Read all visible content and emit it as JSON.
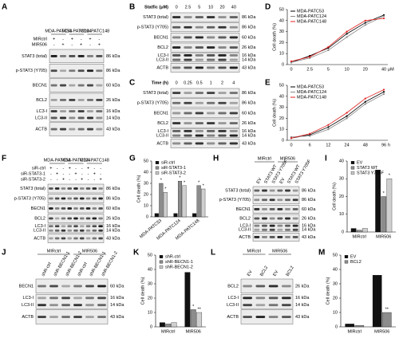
{
  "blots": [
    {
      "panel": "A",
      "groups": [
        "MDA-PATC53",
        "MDA-PATC124",
        "MDA-PATC148"
      ],
      "conditions": [
        {
          "label": "MIRctrl",
          "marks": [
            "+",
            "-",
            "+",
            "-",
            "+",
            "-"
          ]
        },
        {
          "label": "MIR506",
          "marks": [
            "-",
            "+",
            "-",
            "+",
            "-",
            "+"
          ]
        }
      ],
      "rows": [
        {
          "names": [
            "STAT3 (total)"
          ],
          "kda": [
            "86 kDa"
          ]
        },
        {
          "names": [
            "p-STAT3 (Y705)"
          ],
          "kda": [
            "86 kDa"
          ]
        },
        {
          "names": [
            "BECN1"
          ],
          "kda": [
            "60 kDa"
          ]
        },
        {
          "names": [
            "BCL2"
          ],
          "kda": [
            "26 kDa"
          ]
        },
        {
          "names": [
            "LC3-I",
            "LC3-II"
          ],
          "kda": [
            "16 kDa",
            "14 kDa"
          ]
        },
        {
          "names": [
            "ACTB"
          ],
          "kda": [
            "43 kDa"
          ]
        }
      ]
    },
    {
      "panel": "B",
      "dose": {
        "label": "Statfic (μM)",
        "levels": [
          "0",
          "2.5",
          "5",
          "10",
          "20",
          "40"
        ]
      },
      "rows": [
        {
          "names": [
            "STAT3 (total)"
          ],
          "kda": [
            "86 kDa"
          ]
        },
        {
          "names": [
            "p-STAT3 (Y705)"
          ],
          "kda": [
            "86 kDa"
          ]
        },
        {
          "names": [
            "BECN1"
          ],
          "kda": [
            "60 kDa"
          ]
        },
        {
          "names": [
            "BCL2"
          ],
          "kda": [
            "26 kDa"
          ]
        },
        {
          "names": [
            "LC3-I",
            "LC3-II"
          ],
          "kda": [
            "16 kDa",
            "14 kDa"
          ]
        },
        {
          "names": [
            "ACTB"
          ],
          "kda": [
            "43 kDa"
          ]
        }
      ]
    },
    {
      "panel": "C",
      "dose": {
        "label": "Time (h)",
        "levels": [
          "0",
          "0.25",
          "0.5",
          "1",
          "2",
          "4"
        ]
      },
      "rows": [
        {
          "names": [
            "STAT3 (total)"
          ],
          "kda": [
            "86 kDa"
          ]
        },
        {
          "names": [
            "p-STAT3 (Y705)"
          ],
          "kda": [
            "86 kDa"
          ]
        },
        {
          "names": [
            "BECN1"
          ],
          "kda": [
            "60 kDa"
          ]
        },
        {
          "names": [
            "BCL2"
          ],
          "kda": [
            "26 kDa"
          ]
        },
        {
          "names": [
            "LC3-I",
            "LC3-II"
          ],
          "kda": [
            "16 kDa",
            "14 kDa"
          ]
        },
        {
          "names": [
            "ACTB"
          ],
          "kda": [
            "43 kDa"
          ]
        }
      ]
    },
    {
      "panel": "F",
      "groups": [
        "MDA-PATC53",
        "MDA-PATC124",
        "MDA-PATC148"
      ],
      "conditions": [
        {
          "label": "siR-ctrl",
          "marks": [
            "+",
            "-",
            "-",
            "+",
            "-",
            "-",
            "+",
            "-",
            "-"
          ]
        },
        {
          "label": "siR-STAT3-1",
          "marks": [
            "-",
            "+",
            "-",
            "-",
            "+",
            "-",
            "-",
            "+",
            "-"
          ]
        },
        {
          "label": "siR-STAT3-2",
          "marks": [
            "-",
            "-",
            "+",
            "-",
            "-",
            "+",
            "-",
            "-",
            "+"
          ]
        }
      ],
      "rows": [
        {
          "names": [
            "STAT3 (total)"
          ],
          "kda": [
            "86 kDa"
          ]
        },
        {
          "names": [
            "p-STAT3 (Y705)"
          ],
          "kda": [
            "86 kDa"
          ]
        },
        {
          "names": [
            "BECN1"
          ],
          "kda": [
            "60 kDa"
          ]
        },
        {
          "names": [
            "BCL2"
          ],
          "kda": [
            "26 kDa"
          ]
        },
        {
          "names": [
            "LC3-I",
            "LC3-II"
          ],
          "kda": [
            "16 kDa",
            "14 kDa"
          ]
        },
        {
          "names": [
            "ACTB"
          ],
          "kda": [
            "43 kDa"
          ]
        }
      ]
    },
    {
      "panel": "H",
      "groups": [
        "MIRctrl",
        "MIR506"
      ],
      "lanes": [
        "EV",
        "STAT3 WT",
        "STAT3 Y705F",
        "EV",
        "STAT3 WT",
        "STAT3 Y705F"
      ],
      "rows": [
        {
          "names": [
            "STAT3 (total)"
          ],
          "kda": [
            "86 kDa"
          ]
        },
        {
          "names": [
            "p-STAT3 (Y705)"
          ],
          "kda": [
            "86 kDa"
          ]
        },
        {
          "names": [
            "BECN1"
          ],
          "kda": [
            "60 kDa"
          ]
        },
        {
          "names": [
            "BCL2"
          ],
          "kda": [
            "26 kDa"
          ]
        },
        {
          "names": [
            "LC3-I",
            "LC3-II"
          ],
          "kda": [
            "16 kDa",
            "14 kDa"
          ]
        },
        {
          "names": [
            "ACTB"
          ],
          "kda": [
            "43 kDa"
          ]
        }
      ]
    },
    {
      "panel": "J",
      "groups": [
        "MIRctrl",
        "MIR506"
      ],
      "lanes": [
        "shR-ctrl",
        "shR-BECN1-1",
        "shR-BECN1-2",
        "shR-ctrl",
        "shR-BECN1-1",
        "shR-BECN1-2"
      ],
      "rows": [
        {
          "names": [
            "BECN1"
          ],
          "kda": [
            "60 kDa"
          ]
        },
        {
          "names": [
            "LC3-I",
            "LC3-II"
          ],
          "kda": [
            "16 kDa",
            "14 kDa"
          ]
        },
        {
          "names": [
            "ACTB"
          ],
          "kda": [
            "43 kDa"
          ]
        }
      ]
    },
    {
      "panel": "L",
      "groups": [
        "MIRctrl",
        "MIR506"
      ],
      "lanes": [
        "EV",
        "BCL2",
        "EV",
        "BCL2"
      ],
      "rows": [
        {
          "names": [
            "BCL2"
          ],
          "kda": [
            "26 kDa"
          ]
        },
        {
          "names": [
            "LC3-I",
            "LC3-II"
          ],
          "kda": [
            "16 kDa",
            "14 kDa"
          ]
        },
        {
          "names": [
            "ACTB"
          ],
          "kda": [
            "43 kDa"
          ]
        }
      ]
    }
  ],
  "chart_data": [
    {
      "type": "line",
      "panel": "D",
      "y_label": "Cell death (%)",
      "x_unit": "μM",
      "categories": [
        "0",
        "2.5",
        "5",
        "10",
        "20",
        "40"
      ],
      "ylim": [
        0,
        50
      ],
      "yticks": [
        0,
        10,
        20,
        30,
        40,
        50
      ],
      "series": [
        {
          "name": "MDA-PATC53",
          "color": "#000000",
          "values": [
            2,
            8,
            15,
            28,
            38,
            45
          ]
        },
        {
          "name": "MDA-PATC124",
          "color": "#888888",
          "values": [
            2,
            6,
            13,
            25,
            36,
            44
          ]
        },
        {
          "name": "MDA-PATC148",
          "color": "#e02020",
          "values": [
            3,
            7,
            16,
            30,
            40,
            42
          ]
        }
      ]
    },
    {
      "type": "line",
      "panel": "E",
      "y_label": "Cell death (%)",
      "x_unit": "h",
      "categories": [
        "0",
        "6",
        "12",
        "24",
        "48",
        "96"
      ],
      "ylim": [
        0,
        50
      ],
      "yticks": [
        0,
        10,
        20,
        30,
        40,
        50
      ],
      "series": [
        {
          "name": "MDA-PATC53",
          "color": "#000000",
          "values": [
            2,
            5,
            12,
            22,
            35,
            44
          ]
        },
        {
          "name": "MDA-PATC124",
          "color": "#888888",
          "values": [
            3,
            4,
            10,
            20,
            33,
            42
          ]
        },
        {
          "name": "MDA-PATC148",
          "color": "#e02020",
          "values": [
            2,
            6,
            14,
            25,
            38,
            46
          ]
        }
      ]
    },
    {
      "type": "bar",
      "panel": "G",
      "y_label": "Cell death (%)",
      "categories": [
        "MDA-PATC53",
        "MDA-PATC124",
        "MDA-PATC148"
      ],
      "ylim": [
        0,
        50
      ],
      "yticks": [
        0,
        10,
        20,
        30,
        40,
        50
      ],
      "series": [
        {
          "name": "siR-ctrl",
          "color": "#111111",
          "values": [
            3,
            3,
            3
          ]
        },
        {
          "name": "siR-STAT3-1",
          "color": "#8c8c8c",
          "values": [
            30,
            32,
            28
          ],
          "significance": [
            "*",
            "*",
            "*"
          ]
        },
        {
          "name": "siR-STAT3-2",
          "color": "#cfcfcf",
          "values": [
            22,
            28,
            25
          ],
          "significance": [
            "*",
            "*",
            "*"
          ]
        }
      ]
    },
    {
      "type": "bar",
      "panel": "I",
      "y_label": "Cell death (%)",
      "categories": [
        "MIRctrl",
        "MIR506"
      ],
      "ylim": [
        0,
        40
      ],
      "yticks": [
        0,
        10,
        20,
        30,
        40
      ],
      "series": [
        {
          "name": "EV",
          "color": "#111111",
          "values": [
            2,
            35
          ]
        },
        {
          "name": "STAT3 WT",
          "color": "#8c8c8c",
          "values": [
            1,
            20
          ],
          "significance": [
            null,
            "*"
          ]
        },
        {
          "name": "STAT3 Y705F",
          "color": "#cfcfcf",
          "values": [
            2,
            30
          ],
          "significance": [
            null,
            "*"
          ]
        }
      ]
    },
    {
      "type": "bar",
      "panel": "K",
      "y_label": "Cell death (%)",
      "categories": [
        "MIRctrl",
        "MIR506"
      ],
      "ylim": [
        0,
        50
      ],
      "yticks": [
        0,
        10,
        20,
        30,
        40,
        50
      ],
      "series": [
        {
          "name": "shR-ctrl",
          "color": "#111111",
          "values": [
            3,
            38
          ]
        },
        {
          "name": "shR-BECN1-1",
          "color": "#8c8c8c",
          "values": [
            2,
            12
          ],
          "significance": [
            null,
            "*"
          ]
        },
        {
          "name": "shR-BECN1-2",
          "color": "#cfcfcf",
          "values": [
            3,
            10
          ],
          "significance": [
            null,
            "**"
          ]
        }
      ]
    },
    {
      "type": "bar",
      "panel": "M",
      "y_label": "Cell death (%)",
      "categories": [
        "MIRctrl",
        "MIR506"
      ],
      "ylim": [
        0,
        50
      ],
      "yticks": [
        0,
        10,
        20,
        30,
        40,
        50
      ],
      "series": [
        {
          "name": "EV",
          "color": "#111111",
          "values": [
            2,
            36
          ]
        },
        {
          "name": "BCL2",
          "color": "#8c8c8c",
          "values": [
            1,
            10
          ],
          "significance": [
            null,
            "**"
          ]
        }
      ]
    }
  ]
}
